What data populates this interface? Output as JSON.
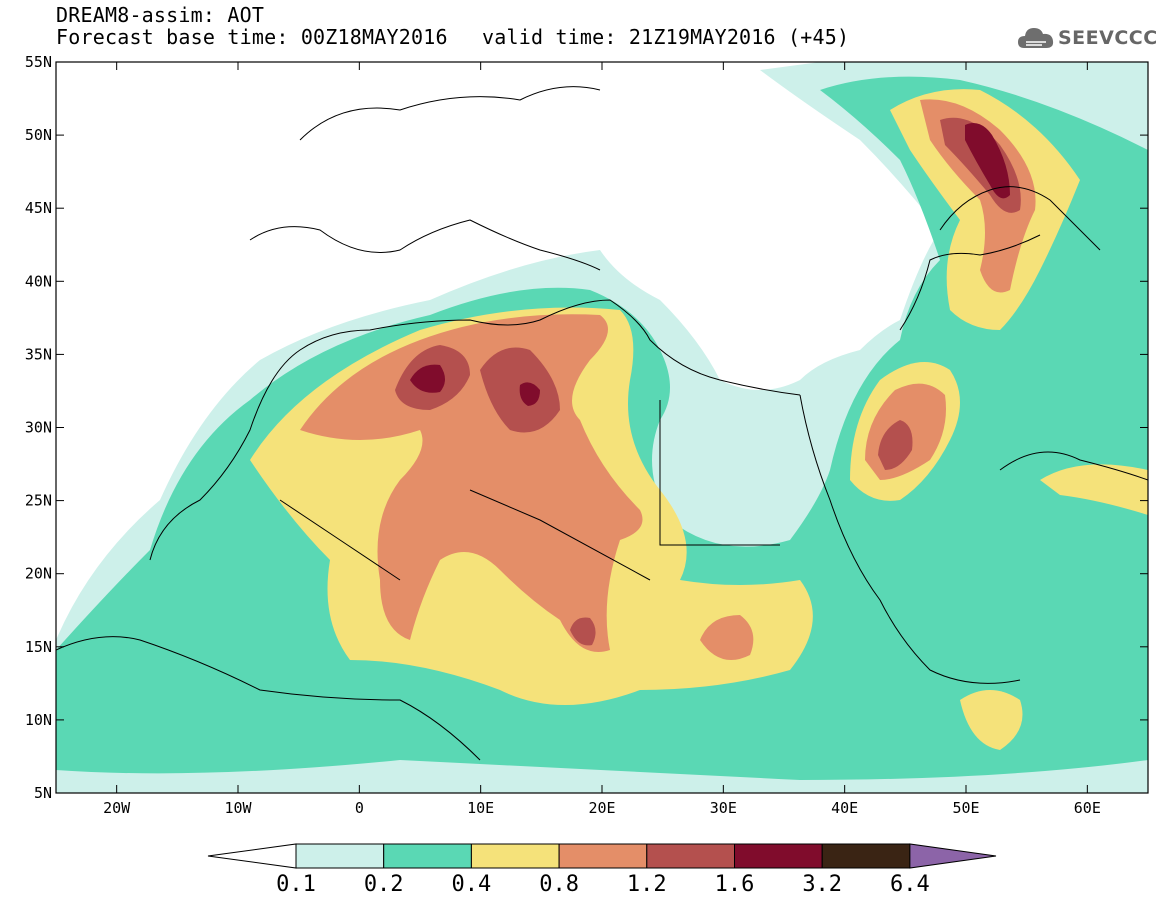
{
  "header": {
    "model_line": "DREAM8-assim: AOT",
    "base_time_line": "Forecast base time: 00Z18MAY2016",
    "valid_time_line": "valid time: 21Z19MAY2016 (+45)",
    "logo_text": "SEEVCCC"
  },
  "map": {
    "lon_range": [
      -25,
      65
    ],
    "lat_range": [
      5,
      55
    ],
    "lat_ticks": [
      "5N",
      "10N",
      "15N",
      "20N",
      "25N",
      "30N",
      "35N",
      "40N",
      "45N",
      "50N",
      "55N"
    ],
    "lon_ticks": [
      "20W",
      "10W",
      "0",
      "10E",
      "20E",
      "30E",
      "40E",
      "50E",
      "60E"
    ],
    "colors": {
      "c01": "#cdf0ea",
      "c02": "#5ad8b4",
      "c04": "#f5e27a",
      "c08": "#e48e68",
      "c12": "#b4504e",
      "c16": "#800c2c",
      "c32": "#3a2414",
      "c64": "#8c64a8"
    }
  },
  "colorbar": {
    "labels": [
      "0.1",
      "0.2",
      "0.4",
      "0.8",
      "1.2",
      "1.6",
      "3.2",
      "6.4"
    ]
  }
}
